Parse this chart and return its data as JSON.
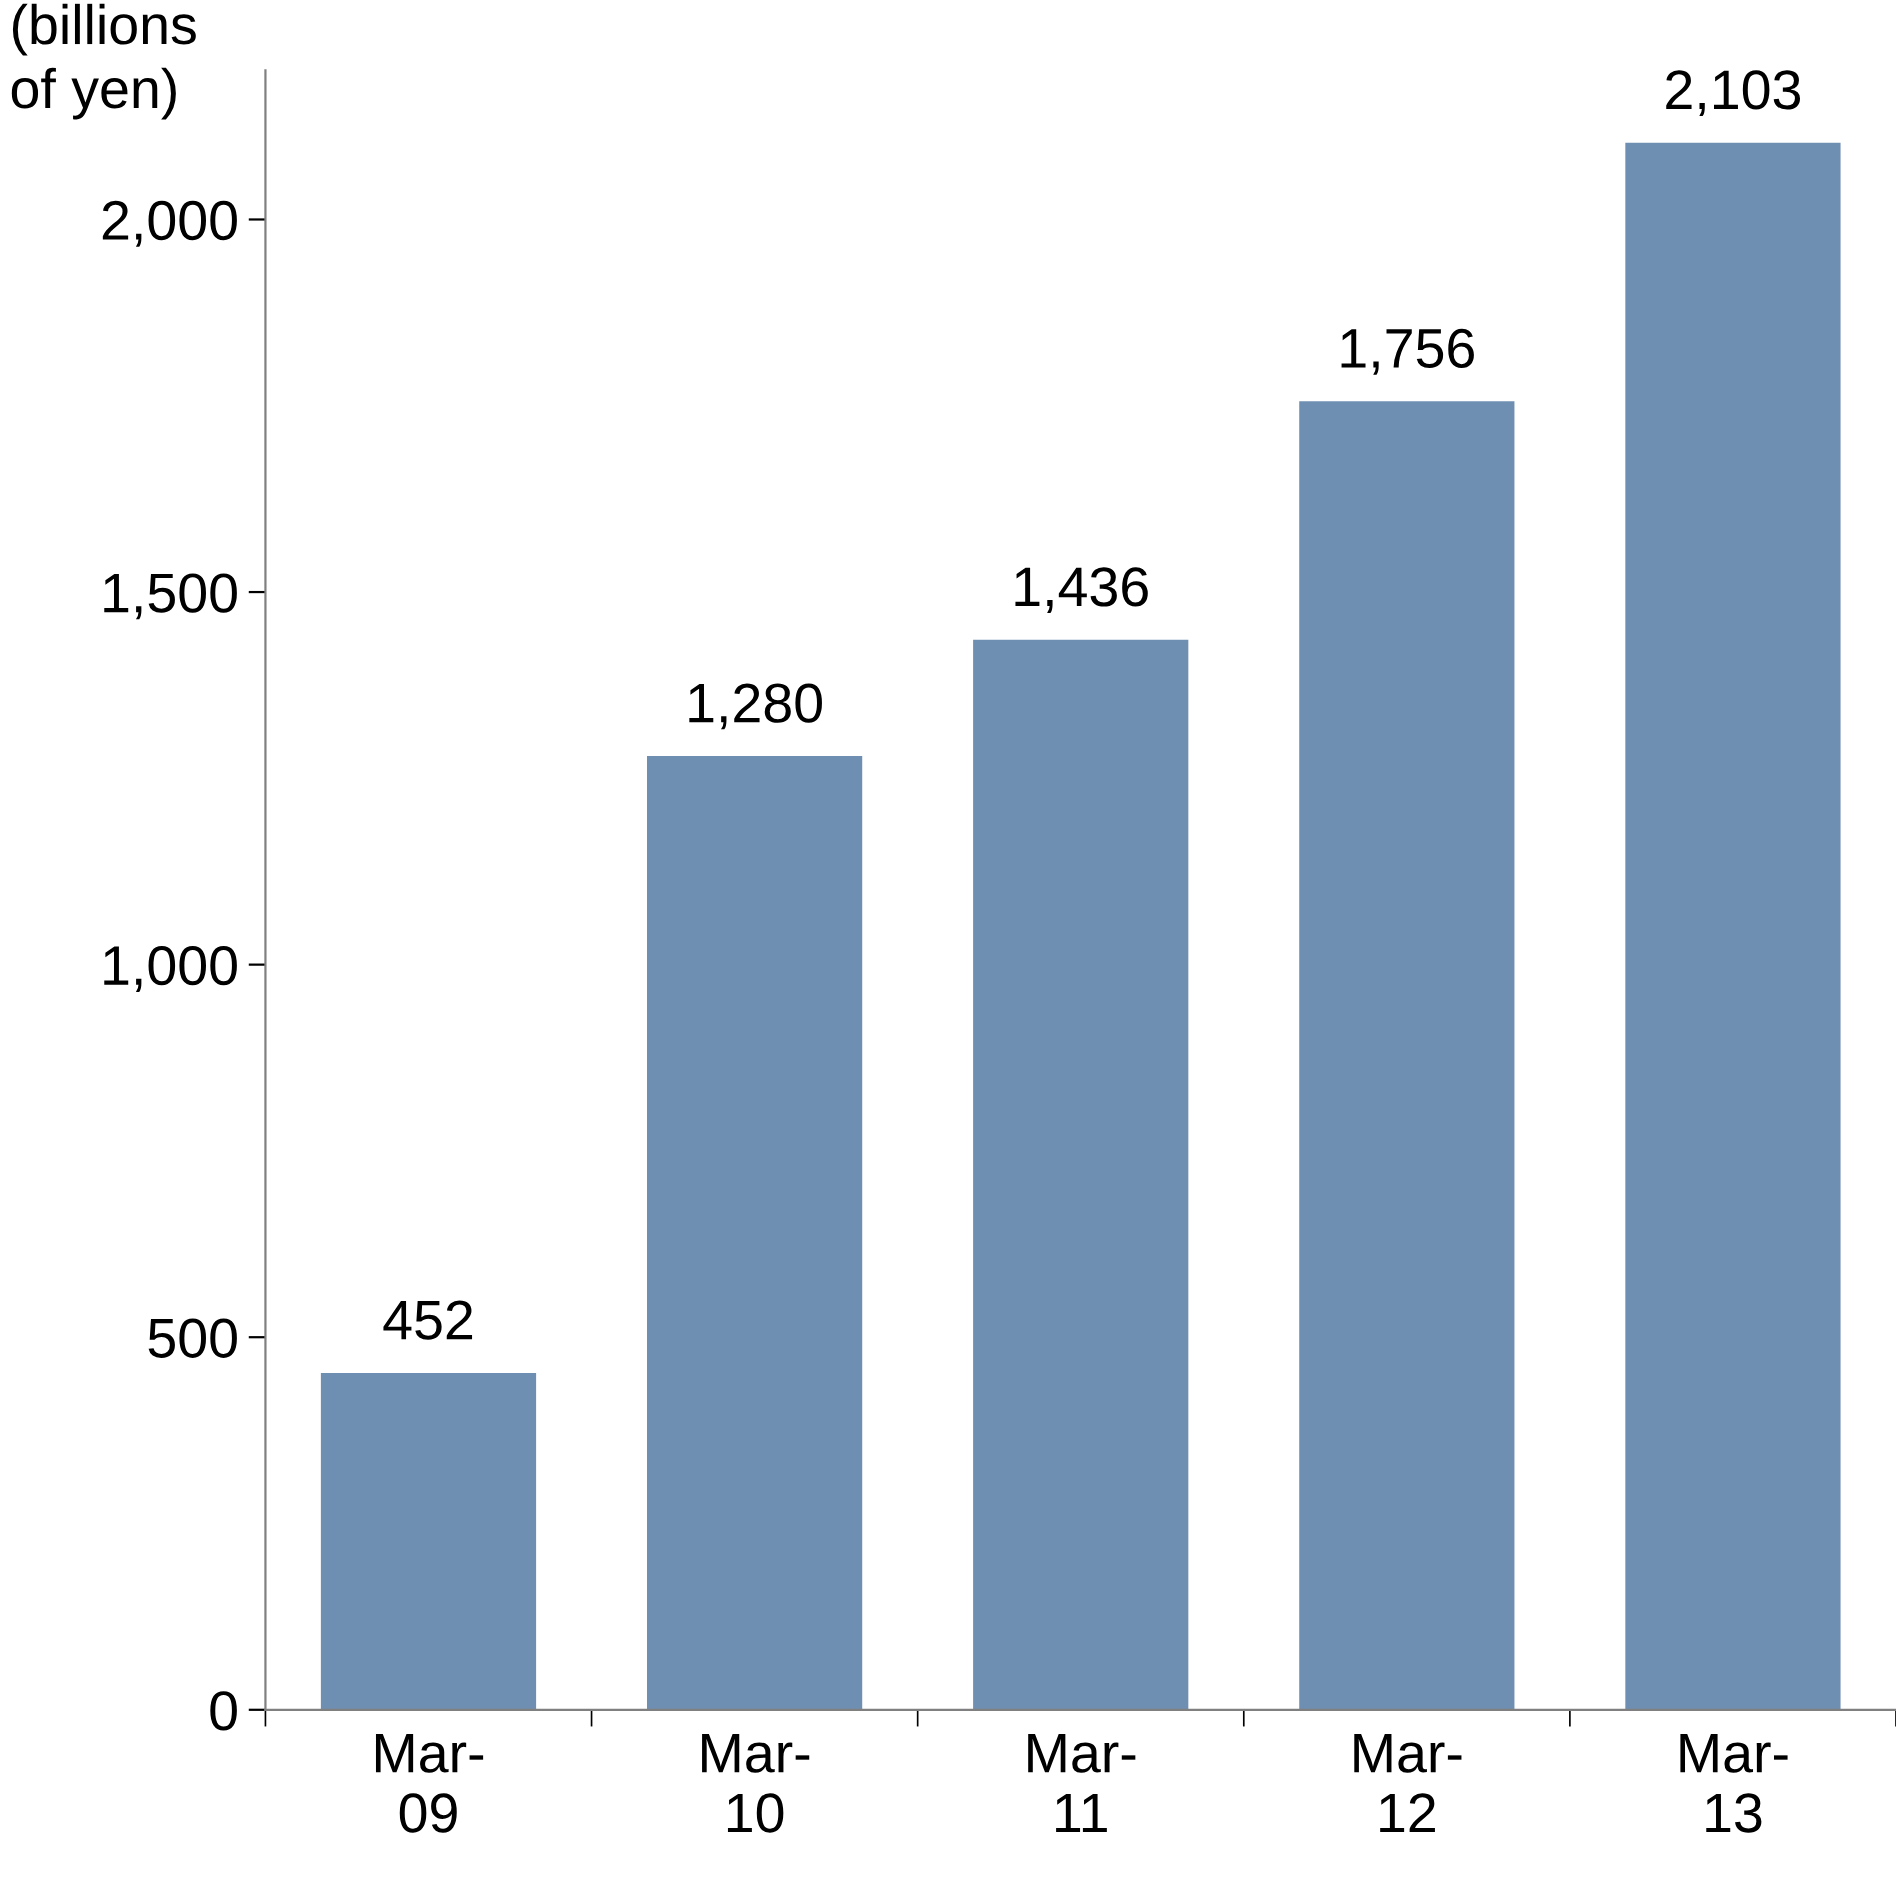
{
  "chart_data": {
    "type": "bar",
    "ylabel": "(billions\nof yen)",
    "categories": [
      "Mar-\n09",
      "Mar-\n10",
      "Mar-\n11",
      "Mar-\n12",
      "Mar-\n13"
    ],
    "values": [
      452,
      1280,
      1436,
      1756,
      2103
    ],
    "color": "#6f8fb2",
    "ylim": [
      0,
      2200
    ],
    "yticks": [
      0,
      {
        "value": 500,
        "label": "500"
      },
      {
        "value": 1000,
        "label": "1,000"
      },
      {
        "value": 1500,
        "label": "1,500"
      },
      {
        "value": 2000,
        "label": "2,000"
      }
    ],
    "value_labels": [
      "452",
      "1,280",
      "1,436",
      "1,756",
      "2,103"
    ],
    "grid": false,
    "legend": false
  }
}
